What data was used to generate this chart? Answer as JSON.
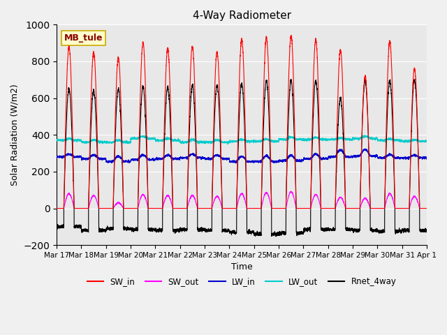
{
  "title": "4-Way Radiometer",
  "xlabel": "Time",
  "ylabel": "Solar Radiation (W/m2)",
  "station_label": "MB_tule",
  "ylim": [
    -200,
    1000
  ],
  "legend_entries": [
    "SW_in",
    "SW_out",
    "LW_in",
    "LW_out",
    "Rnet_4way"
  ],
  "legend_colors": [
    "#ff0000",
    "#ff00ff",
    "#0000cc",
    "#00cccc",
    "#000000"
  ],
  "line_colors": {
    "SW_in": "#ff0000",
    "SW_out": "#ff00ff",
    "LW_in": "#0000cc",
    "LW_out": "#00cccc",
    "Rnet_4way": "#000000"
  },
  "x_tick_labels": [
    "Mar 17",
    "Mar 18",
    "Mar 19",
    "Mar 20",
    "Mar 21",
    "Mar 22",
    "Mar 23",
    "Mar 24",
    "Mar 25",
    "Mar 26",
    "Mar 27",
    "Mar 28",
    "Mar 29",
    "Mar 30",
    "Mar 31",
    "Apr 1"
  ],
  "background_color": "#e8e8e8",
  "grid_color": "#ffffff",
  "num_days": 15,
  "SW_in_peak": [
    880,
    850,
    820,
    900,
    870,
    880,
    850,
    920,
    930,
    940,
    920,
    860,
    720,
    910,
    760
  ],
  "SW_out_peak": [
    80,
    70,
    30,
    75,
    70,
    70,
    65,
    80,
    85,
    90,
    75,
    60,
    55,
    80,
    65
  ],
  "LW_in_base": [
    280,
    270,
    255,
    265,
    270,
    275,
    270,
    255,
    255,
    260,
    270,
    280,
    285,
    275,
    275
  ],
  "LW_in_peak": [
    310,
    310,
    310,
    315,
    310,
    315,
    310,
    310,
    315,
    315,
    320,
    355,
    355,
    310,
    305
  ],
  "LW_out_base": [
    370,
    360,
    360,
    380,
    370,
    360,
    360,
    365,
    365,
    375,
    375,
    375,
    380,
    370,
    365
  ],
  "LW_out_peak": [
    400,
    400,
    400,
    420,
    405,
    410,
    400,
    400,
    405,
    415,
    410,
    400,
    420,
    395,
    390
  ],
  "Rnet_peak": [
    650,
    640,
    650,
    665,
    660,
    670,
    670,
    680,
    695,
    695,
    695,
    600,
    695,
    695,
    700
  ],
  "Rnet_night": [
    -100,
    -120,
    -110,
    -115,
    -120,
    -115,
    -120,
    -130,
    -140,
    -135,
    -115,
    -115,
    -120,
    -125,
    -120
  ]
}
